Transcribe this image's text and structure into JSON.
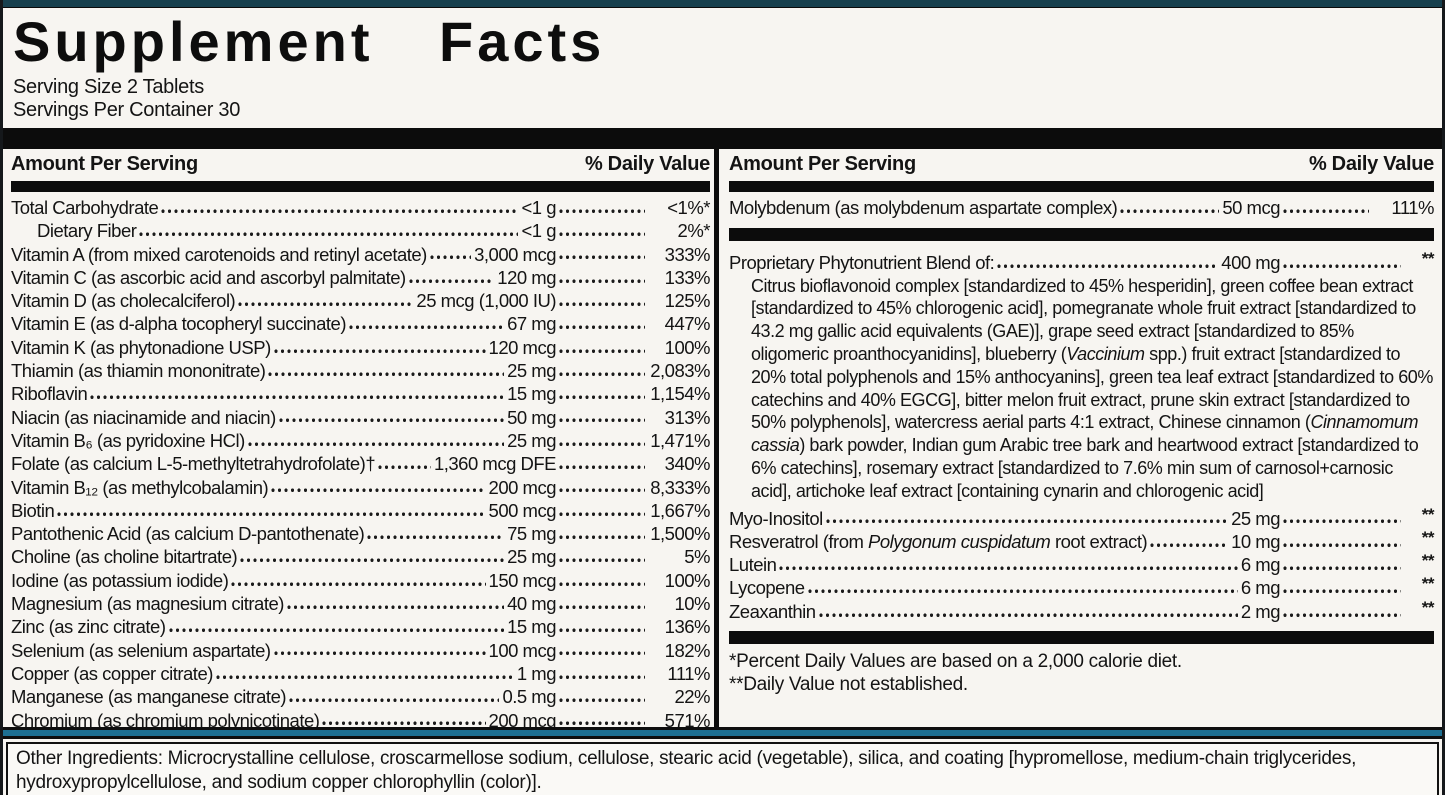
{
  "title": "Supplement Facts",
  "serving_size": "Serving Size 2 Tablets",
  "servings_per_container": "Servings Per Container 30",
  "column_headers": {
    "amount": "Amount Per Serving",
    "daily_value": "% Daily Value"
  },
  "left_rows": [
    {
      "name": "Total Carbohydrate",
      "amount": "<1 g",
      "pct": "<1%*"
    },
    {
      "name": "Dietary Fiber",
      "amount": "<1 g",
      "pct": "2%*",
      "indent": true
    },
    {
      "name": "Vitamin A (from mixed carotenoids and retinyl acetate)",
      "amount": "3,000 mcg",
      "pct": "333%"
    },
    {
      "name": "Vitamin C (as ascorbic acid and ascorbyl palmitate)",
      "amount": "120 mg",
      "pct": "133%"
    },
    {
      "name": "Vitamin D (as cholecalciferol)",
      "amount": "25 mcg (1,000 IU)",
      "pct": "125%"
    },
    {
      "name": "Vitamin E (as d-alpha tocopheryl succinate)",
      "amount": "67 mg",
      "pct": "447%"
    },
    {
      "name": "Vitamin K (as phytonadione USP)",
      "amount": "120 mcg",
      "pct": "100%"
    },
    {
      "name": "Thiamin (as thiamin mononitrate)",
      "amount": "25 mg",
      "pct": "2,083%"
    },
    {
      "name": "Riboflavin",
      "amount": "15 mg",
      "pct": "1,154%"
    },
    {
      "name": "Niacin (as niacinamide and niacin)",
      "amount": "50 mg",
      "pct": "313%"
    },
    {
      "name": "Vitamin B₆ (as pyridoxine HCl)",
      "amount": "25 mg",
      "pct": "1,471%"
    },
    {
      "name": "Folate (as calcium L-5-methyltetrahydrofolate)†",
      "amount": "1,360 mcg DFE",
      "pct": "340%"
    },
    {
      "name": "Vitamin B₁₂ (as methylcobalamin)",
      "amount": "200 mcg",
      "pct": "8,333%"
    },
    {
      "name": "Biotin",
      "amount": "500 mcg",
      "pct": "1,667%"
    },
    {
      "name": "Pantothenic Acid (as calcium D-pantothenate)",
      "amount": "75 mg",
      "pct": "1,500%"
    },
    {
      "name": "Choline (as choline bitartrate)",
      "amount": "25 mg",
      "pct": "5%"
    },
    {
      "name": "Iodine (as potassium iodide)",
      "amount": "150 mcg",
      "pct": "100%"
    },
    {
      "name": "Magnesium (as magnesium citrate)",
      "amount": "40 mg",
      "pct": "10%"
    },
    {
      "name": "Zinc (as zinc citrate)",
      "amount": "15 mg",
      "pct": "136%"
    },
    {
      "name": "Selenium (as selenium aspartate)",
      "amount": "100 mcg",
      "pct": "182%"
    },
    {
      "name": "Copper (as copper citrate)",
      "amount": "1 mg",
      "pct": "111%"
    },
    {
      "name": "Manganese (as manganese citrate)",
      "amount": "0.5 mg",
      "pct": "22%"
    },
    {
      "name": "Chromium (as chromium polynicotinate)",
      "amount": "200 mcg",
      "pct": "571%"
    }
  ],
  "right_column": {
    "rows_top": [
      {
        "name": "Molybdenum (as molybdenum aspartate complex)",
        "amount": "50 mcg",
        "pct": "111%"
      }
    ],
    "blend_header_rows": [
      {
        "name": "Proprietary Phytonutrient Blend of:",
        "amount": "400 mg",
        "pct": "**"
      }
    ],
    "blend_description_segments": [
      {
        "t": "Citrus bioflavonoid complex [standardized to 45% hesperidin], green coffee bean extract [standardized to 45% chlorogenic acid], pomegranate whole fruit extract [standardized to 43.2 mg gallic acid equivalents (GAE)], grape seed extract [standardized to 85% oligomeric proanthocyanidins], blueberry (",
        "i": false
      },
      {
        "t": "Vaccinium",
        "i": true
      },
      {
        "t": " spp.) fruit extract [standardized to 20% total polyphenols and 15% anthocyanins], green tea leaf extract [standardized to 60% catechins and 40% EGCG], bitter melon fruit extract, prune skin extract [standardized to 50% polyphenols], watercress aerial parts 4:1 extract, Chinese cinnamon (",
        "i": false
      },
      {
        "t": "Cinnamomum cassia",
        "i": true
      },
      {
        "t": ") bark powder, Indian gum Arabic tree bark and heartwood extract [standardized to 6% catechins], rosemary extract [standardized to 7.6% min sum of carnosol+carnosic acid], artichoke leaf extract [containing cynarin and chlorogenic acid]",
        "i": false
      }
    ],
    "rows_bottom": [
      {
        "name": "Myo-Inositol",
        "amount": "25 mg",
        "pct": "**"
      },
      {
        "name_segments": [
          {
            "t": "Resveratrol (from ",
            "i": false
          },
          {
            "t": "Polygonum cuspidatum",
            "i": true
          },
          {
            "t": " root extract)",
            "i": false
          }
        ],
        "amount": "10 mg",
        "pct": "**"
      },
      {
        "name": "Lutein",
        "amount": "6 mg",
        "pct": "**"
      },
      {
        "name": "Lycopene",
        "amount": "6 mg",
        "pct": "**"
      },
      {
        "name": "Zeaxanthin",
        "amount": "2 mg",
        "pct": "**"
      }
    ],
    "footnotes": {
      "daily_values": "*Percent Daily Values are based on a 2,000 calorie diet.",
      "not_established": "**Daily Value not established."
    }
  },
  "other_ingredients": "Other Ingredients: Microcrystalline cellulose, croscarmellose sodium, cellulose, stearic acid (vegetable), silica, and coating [hypromellose, medium-chain triglycerides, hydroxypropylcellulose, and sodium copper chlorophyllin (color)].",
  "colors": {
    "top_strip": "#17404e",
    "accent_teal": "#1d6f92",
    "bar_black": "#0c0c0c",
    "bottom_strip_left": "#14566d",
    "bottom_strip_right": "#8b9197",
    "background": "#f7f5f1"
  }
}
